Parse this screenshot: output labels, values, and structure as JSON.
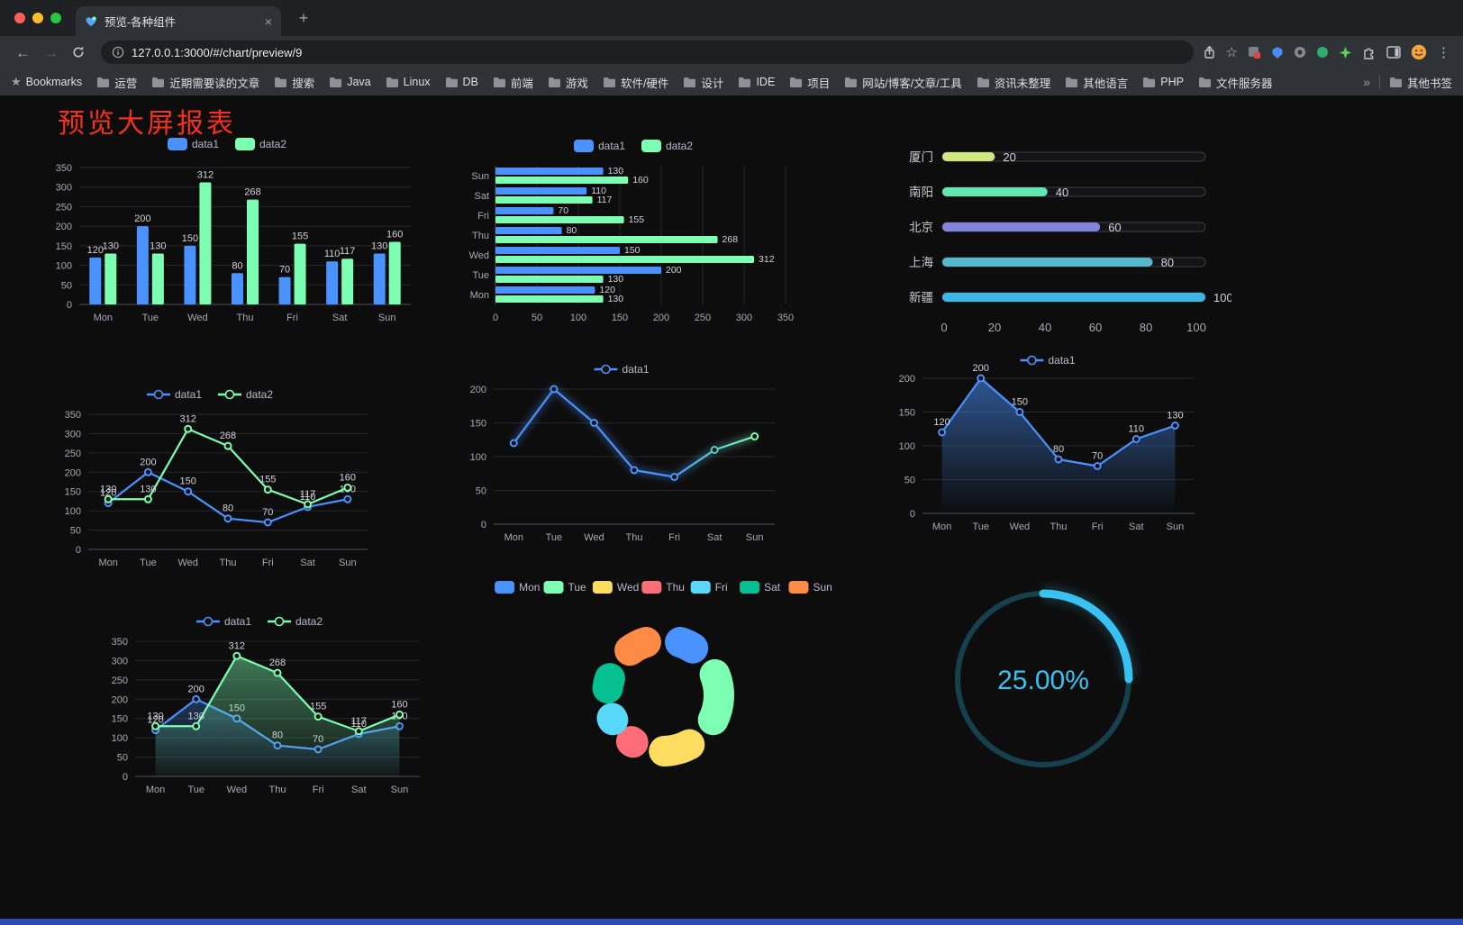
{
  "colors": {
    "accent_blue": "#4992ff",
    "accent_green": "#7cffb2",
    "title_red": "#f5311d",
    "gauge_cyan": "#38c2f2",
    "footer_blue": "#2a4bb4",
    "axis_text": "#a8a8b8",
    "legend_text": "#b9b8ce",
    "value_label": "#d2d2dc"
  },
  "browser": {
    "tab_title": "预览-各种组件",
    "tab_close": "×",
    "new_tab": "+",
    "url": "127.0.0.1:3000/#/chart/preview/9",
    "bookmarks_label": "Bookmarks",
    "bookmark_folders": [
      "运营",
      "近期需要读的文章",
      "搜索",
      "Java",
      "Linux",
      "DB",
      "前端",
      "游戏",
      "软件/硬件",
      "设计",
      "IDE",
      "项目",
      "网站/博客/文章/工具",
      "资讯未整理",
      "其他语言",
      "PHP",
      "文件服务器"
    ],
    "overflow_chevron": "»",
    "other_bookmarks": "其他书签"
  },
  "page": {
    "title": "预览大屏报表"
  },
  "chart_data": [
    {
      "id": "bar-vertical-grouped",
      "type": "bar",
      "orientation": "vertical",
      "categories": [
        "Mon",
        "Tue",
        "Wed",
        "Thu",
        "Fri",
        "Sat",
        "Sun"
      ],
      "series": [
        {
          "name": "data1",
          "color": "#4992ff",
          "values": [
            120,
            200,
            150,
            80,
            70,
            110,
            130
          ]
        },
        {
          "name": "data2",
          "color": "#7cffb2",
          "values": [
            130,
            130,
            312,
            268,
            155,
            117,
            160
          ]
        }
      ],
      "ylim": [
        0,
        350
      ],
      "yticks": [
        0,
        50,
        100,
        150,
        200,
        250,
        300,
        350
      ],
      "legend": [
        "data1",
        "data2"
      ],
      "value_labels": true
    },
    {
      "id": "bar-horizontal-grouped",
      "type": "bar",
      "orientation": "horizontal",
      "categories": [
        "Mon",
        "Tue",
        "Wed",
        "Thu",
        "Fri",
        "Sat",
        "Sun"
      ],
      "series": [
        {
          "name": "data1",
          "color": "#4992ff",
          "values": [
            120,
            200,
            150,
            80,
            70,
            110,
            130
          ]
        },
        {
          "name": "data2",
          "color": "#7cffb2",
          "values": [
            130,
            130,
            312,
            268,
            155,
            117,
            160
          ]
        }
      ],
      "xlim": [
        0,
        350
      ],
      "xticks": [
        0,
        50,
        100,
        150,
        200,
        250,
        300,
        350
      ],
      "legend": [
        "data1",
        "data2"
      ],
      "value_labels": true
    },
    {
      "id": "progress-ranking",
      "type": "bar",
      "style": "pill",
      "orientation": "horizontal",
      "xlim": [
        0,
        100
      ],
      "xticks": [
        0,
        20,
        40,
        60,
        80,
        100
      ],
      "rows": [
        {
          "label": "厦门",
          "value": 20,
          "color": "#cfe87f"
        },
        {
          "label": "南阳",
          "value": 40,
          "color": "#63e6b0"
        },
        {
          "label": "北京",
          "value": 60,
          "color": "#8283dc"
        },
        {
          "label": "上海",
          "value": 80,
          "color": "#57b7cd"
        },
        {
          "label": "新疆",
          "value": 100,
          "color": "#3db5e6"
        }
      ]
    },
    {
      "id": "line-dual",
      "type": "line",
      "categories": [
        "Mon",
        "Tue",
        "Wed",
        "Thu",
        "Fri",
        "Sat",
        "Sun"
      ],
      "series": [
        {
          "name": "data1",
          "color": "#4992ff",
          "values": [
            120,
            200,
            150,
            80,
            70,
            110,
            130
          ]
        },
        {
          "name": "data2",
          "color": "#7cffb2",
          "values": [
            130,
            130,
            312,
            268,
            155,
            117,
            160
          ]
        }
      ],
      "ylim": [
        0,
        350
      ],
      "yticks": [
        0,
        50,
        100,
        150,
        200,
        250,
        300,
        350
      ],
      "legend": [
        "data1",
        "data2"
      ],
      "value_labels": true
    },
    {
      "id": "line-gradient",
      "type": "line",
      "categories": [
        "Mon",
        "Tue",
        "Wed",
        "Thu",
        "Fri",
        "Sat",
        "Sun"
      ],
      "series": [
        {
          "name": "data1",
          "color": "#4992ff",
          "color_end": "#7cffb2",
          "values": [
            120,
            200,
            150,
            80,
            70,
            110,
            130
          ],
          "marker_colors": [
            "#4992ff",
            "#4992ff",
            "#4992ff",
            "#4992ff",
            "#4992ff",
            "#45d4c0",
            "#7cffb2"
          ]
        }
      ],
      "ylim": [
        0,
        200
      ],
      "yticks": [
        0,
        50,
        100,
        150,
        200
      ],
      "legend": [
        "data1"
      ],
      "value_labels": false,
      "glow": true
    },
    {
      "id": "line-area",
      "type": "line",
      "categories": [
        "Mon",
        "Tue",
        "Wed",
        "Thu",
        "Fri",
        "Sat",
        "Sun"
      ],
      "series": [
        {
          "name": "data1",
          "color": "#4992ff",
          "values": [
            120,
            200,
            150,
            80,
            70,
            110,
            130
          ],
          "area": {
            "from": "rgba(73,146,255,0.55)",
            "to": "rgba(73,146,255,0)"
          }
        }
      ],
      "ylim": [
        0,
        200
      ],
      "yticks": [
        0,
        50,
        100,
        150,
        200
      ],
      "legend": [
        "data1"
      ],
      "value_labels": true
    },
    {
      "id": "line-dual-area",
      "type": "line",
      "categories": [
        "Mon",
        "Tue",
        "Wed",
        "Thu",
        "Fri",
        "Sat",
        "Sun"
      ],
      "series": [
        {
          "name": "data1",
          "color": "#4992ff",
          "values": [
            120,
            200,
            150,
            80,
            70,
            110,
            130
          ],
          "area": {
            "from": "rgba(73,146,255,0.30)",
            "to": "rgba(73,146,255,0.02)"
          }
        },
        {
          "name": "data2",
          "color": "#7cffb2",
          "values": [
            130,
            130,
            312,
            268,
            155,
            117,
            160
          ],
          "area": {
            "from": "rgba(124,255,178,0.45)",
            "to": "rgba(124,255,178,0.03)"
          }
        }
      ],
      "ylim": [
        0,
        350
      ],
      "yticks": [
        0,
        50,
        100,
        150,
        200,
        250,
        300,
        350
      ],
      "legend": [
        "data1",
        "data2"
      ],
      "value_labels": true
    },
    {
      "id": "donut",
      "type": "pie",
      "categories": [
        "Mon",
        "Tue",
        "Wed",
        "Thu",
        "Fri",
        "Sat",
        "Sun"
      ],
      "values": [
        120,
        200,
        150,
        80,
        70,
        110,
        130
      ],
      "colors": [
        "#4992ff",
        "#7cffb2",
        "#fddd60",
        "#ff6e76",
        "#58d9f9",
        "#05c091",
        "#ff8a45"
      ],
      "legend": [
        "Mon",
        "Tue",
        "Wed",
        "Thu",
        "Fri",
        "Sat",
        "Sun"
      ]
    },
    {
      "id": "gauge",
      "type": "gauge",
      "value": 25,
      "label": "25.00%",
      "color": "#38c2f2"
    }
  ]
}
